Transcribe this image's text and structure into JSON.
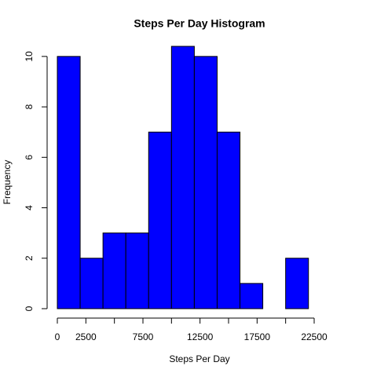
{
  "chart_data": {
    "type": "histogram",
    "title": "Steps Per Day Histogram",
    "x_label": "Steps Per Day",
    "y_label": "Frequency",
    "bins": [
      0,
      2000,
      4000,
      6000,
      8000,
      10000,
      12000,
      14000,
      16000,
      18000,
      20000,
      22000
    ],
    "values": [
      10,
      2,
      3,
      3,
      7,
      10.4,
      10,
      7,
      1,
      0,
      2
    ],
    "color": "#0000ff",
    "xlim": [
      0,
      22500
    ],
    "xticks": [
      0,
      2500,
      7500,
      12500,
      17500,
      22500
    ],
    "xticks_minor": [
      5000,
      10000,
      15000,
      20000
    ],
    "ylim": [
      0,
      10.4
    ],
    "yticks": [
      0,
      2,
      4,
      6,
      8,
      10
    ]
  }
}
